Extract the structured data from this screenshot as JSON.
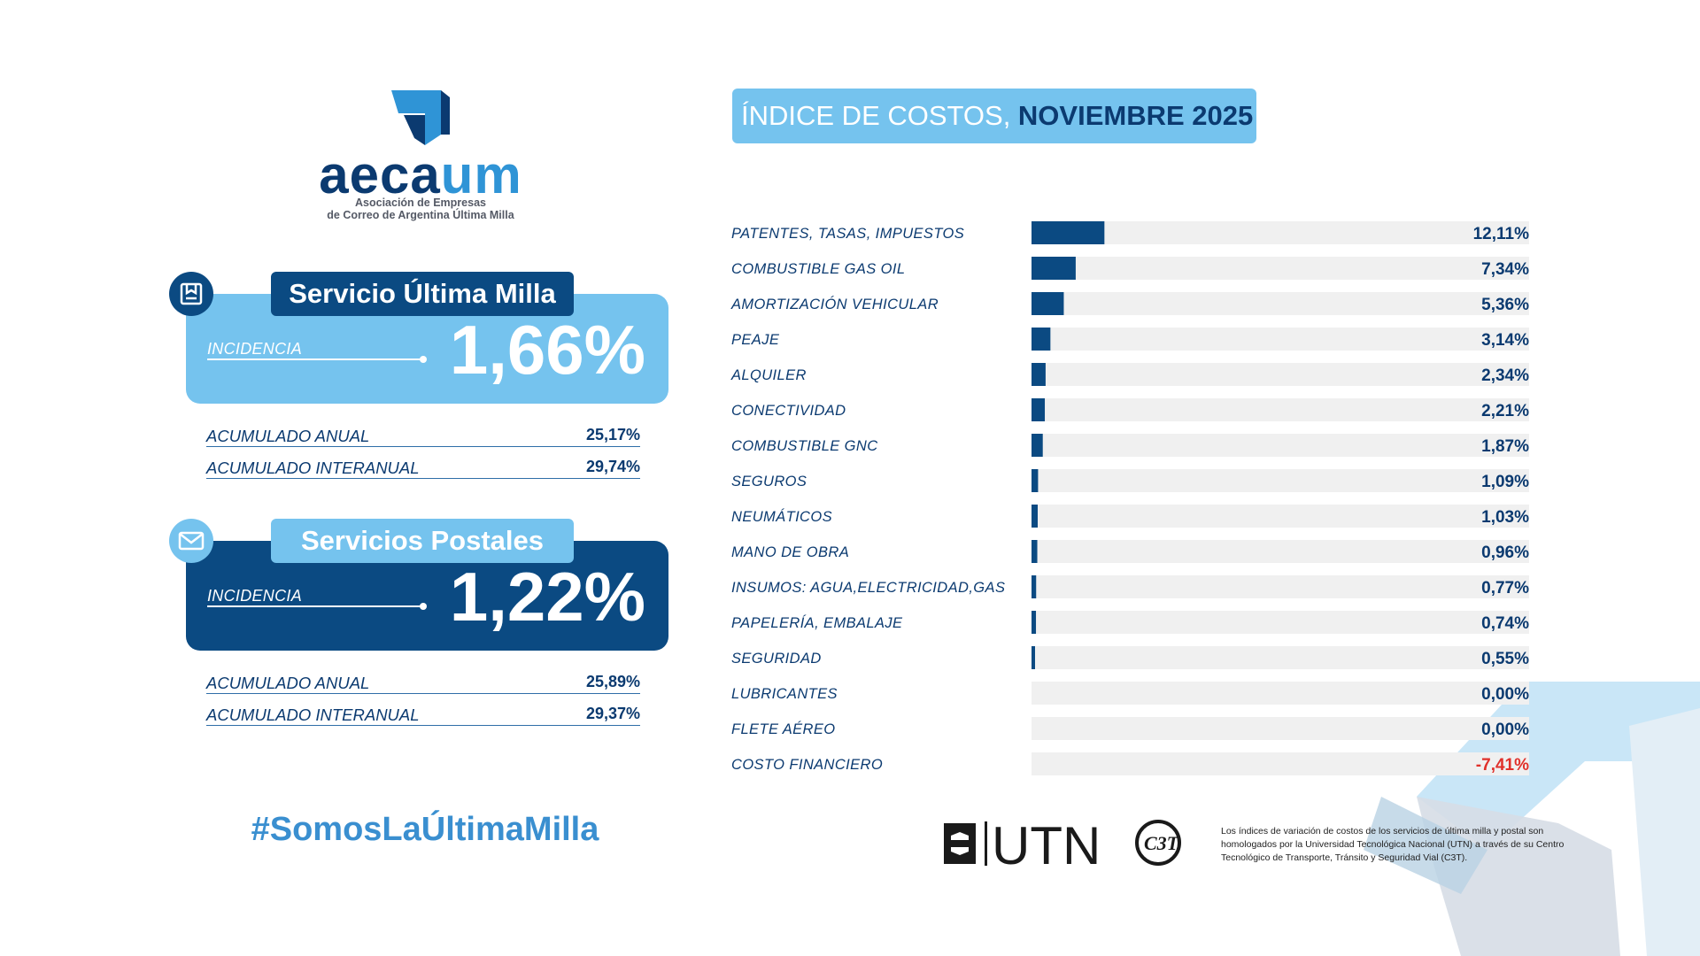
{
  "colors": {
    "dark_blue": "#0b4a82",
    "light_blue": "#75c3ee",
    "bar_track": "#f0f0f0",
    "negative": "#e0302a"
  },
  "logo": {
    "wordmark_a": "aeca",
    "wordmark_b": "um",
    "subtitle_line1": "Asociación de Empresas",
    "subtitle_line2": "de Correo de Argentina Última Milla"
  },
  "ultima_milla": {
    "icon": "box-icon",
    "title": "Servicio Última Milla",
    "incidencia_label": "INCIDENCIA",
    "incidencia_value": "1,66%",
    "rows": [
      {
        "label": "ACUMULADO ANUAL",
        "value": "25,17%"
      },
      {
        "label": "ACUMULADO INTERANUAL",
        "value": "29,74%"
      }
    ]
  },
  "postales": {
    "icon": "envelope-icon",
    "title": "Servicios Postales",
    "incidencia_label": "INCIDENCIA",
    "incidencia_value": "1,22%",
    "rows": [
      {
        "label": "ACUMULADO ANUAL",
        "value": "25,89%"
      },
      {
        "label": "ACUMULADO INTERANUAL",
        "value": "29,37%"
      }
    ]
  },
  "hashtag": "#SomosLaÚltimaMilla",
  "chart_title": {
    "part1": "ÍNDICE DE COSTOS, ",
    "part2": "NOVIEMBRE 2025"
  },
  "chart_data": {
    "type": "bar",
    "orientation": "horizontal",
    "categories": [
      "PATENTES, TASAS, IMPUESTOS",
      "COMBUSTIBLE GAS OIL",
      "AMORTIZACIÓN VEHICULAR",
      "PEAJE",
      "ALQUILER",
      "CONECTIVIDAD",
      "COMBUSTIBLE GNC",
      "SEGUROS",
      "NEUMÁTICOS",
      "MANO DE OBRA",
      "INSUMOS: AGUA,ELECTRICIDAD,GAS",
      "PAPELERÍA, EMBALAJE",
      "SEGURIDAD",
      "LUBRICANTES",
      "FLETE AÉREO",
      "COSTO FINANCIERO"
    ],
    "values": [
      12.11,
      7.34,
      5.36,
      3.14,
      2.34,
      2.21,
      1.87,
      1.09,
      1.03,
      0.96,
      0.77,
      0.74,
      0.55,
      0.0,
      0.0,
      -7.41
    ],
    "value_labels": [
      "12,11%",
      "7,34%",
      "5,36%",
      "3,14%",
      "2,34%",
      "2,21%",
      "1,87%",
      "1,09%",
      "1,03%",
      "0,96%",
      "0,77%",
      "0,74%",
      "0,55%",
      "0,00%",
      "0,00%",
      "-7,41%"
    ],
    "xlim": [
      0,
      100
    ],
    "grid": false,
    "legend": "none"
  },
  "footer": {
    "utn_text": "UTN",
    "c3t_text": "C3T",
    "note": "Los índices de variación de costos de los servicios de última milla y postal son homologados por la Universidad Tecnológica Nacional (UTN) a través de su Centro Tecnológico de Transporte, Tránsito y Seguridad Vial (C3T)."
  }
}
